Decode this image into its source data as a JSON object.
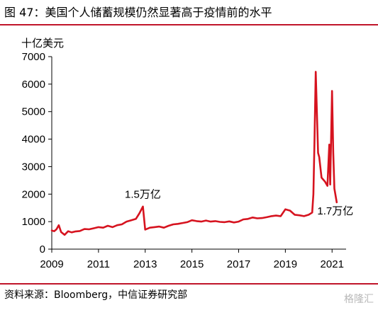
{
  "header": {
    "title": "图 47：美国个人储蓄规模仍然显著高于疫情前的水平"
  },
  "footer": {
    "source": "资料来源：Bloomberg，中信证券研究部",
    "watermark": "格隆汇"
  },
  "colors": {
    "accent": "#c0152a",
    "line": "#d6131f"
  },
  "chart_data": {
    "type": "line",
    "title": "",
    "ylabel": "十亿美元",
    "xlabel": "",
    "ylim": [
      0,
      7000
    ],
    "xlim": [
      2009.0,
      2021.6
    ],
    "yticks": [
      0,
      1000,
      2000,
      3000,
      4000,
      5000,
      6000,
      7000
    ],
    "xticks": [
      2009,
      2011,
      2013,
      2015,
      2017,
      2019,
      2021
    ],
    "grid": false,
    "series": [
      {
        "points": [
          [
            2009.0,
            680
          ],
          [
            2009.1,
            650
          ],
          [
            2009.2,
            720
          ],
          [
            2009.3,
            870
          ],
          [
            2009.4,
            620
          ],
          [
            2009.55,
            520
          ],
          [
            2009.7,
            650
          ],
          [
            2009.85,
            610
          ],
          [
            2010.0,
            640
          ],
          [
            2010.2,
            660
          ],
          [
            2010.4,
            730
          ],
          [
            2010.6,
            720
          ],
          [
            2010.8,
            760
          ],
          [
            2011.0,
            800
          ],
          [
            2011.2,
            780
          ],
          [
            2011.4,
            850
          ],
          [
            2011.6,
            800
          ],
          [
            2011.8,
            870
          ],
          [
            2012.0,
            900
          ],
          [
            2012.2,
            1000
          ],
          [
            2012.4,
            1050
          ],
          [
            2012.6,
            1100
          ],
          [
            2012.75,
            1300
          ],
          [
            2012.9,
            1550
          ],
          [
            2013.0,
            710
          ],
          [
            2013.2,
            780
          ],
          [
            2013.4,
            800
          ],
          [
            2013.6,
            820
          ],
          [
            2013.8,
            780
          ],
          [
            2014.0,
            850
          ],
          [
            2014.2,
            900
          ],
          [
            2014.4,
            920
          ],
          [
            2014.6,
            950
          ],
          [
            2014.8,
            980
          ],
          [
            2015.0,
            1050
          ],
          [
            2015.2,
            1020
          ],
          [
            2015.4,
            1000
          ],
          [
            2015.6,
            1040
          ],
          [
            2015.8,
            1000
          ],
          [
            2016.0,
            1020
          ],
          [
            2016.2,
            990
          ],
          [
            2016.4,
            980
          ],
          [
            2016.6,
            1010
          ],
          [
            2016.8,
            970
          ],
          [
            2017.0,
            1000
          ],
          [
            2017.2,
            1080
          ],
          [
            2017.4,
            1100
          ],
          [
            2017.6,
            1150
          ],
          [
            2017.8,
            1120
          ],
          [
            2018.0,
            1130
          ],
          [
            2018.2,
            1160
          ],
          [
            2018.4,
            1200
          ],
          [
            2018.6,
            1220
          ],
          [
            2018.8,
            1200
          ],
          [
            2019.0,
            1450
          ],
          [
            2019.2,
            1400
          ],
          [
            2019.4,
            1250
          ],
          [
            2019.6,
            1230
          ],
          [
            2019.8,
            1200
          ],
          [
            2020.0,
            1250
          ],
          [
            2020.15,
            1330
          ],
          [
            2020.2,
            2000
          ],
          [
            2020.25,
            4000
          ],
          [
            2020.3,
            6450
          ],
          [
            2020.35,
            5000
          ],
          [
            2020.4,
            3500
          ],
          [
            2020.45,
            3350
          ],
          [
            2020.55,
            2600
          ],
          [
            2020.7,
            2450
          ],
          [
            2020.8,
            2300
          ],
          [
            2020.88,
            3800
          ],
          [
            2020.92,
            2350
          ],
          [
            2021.0,
            5750
          ],
          [
            2021.05,
            3500
          ],
          [
            2021.1,
            2200
          ],
          [
            2021.2,
            1700
          ]
        ]
      }
    ],
    "annotations": [
      {
        "text": "1.5万亿",
        "x": 2012.9,
        "y": 1500
      },
      {
        "text": "1.7万亿",
        "x": 2021.2,
        "y": 1700
      }
    ]
  }
}
